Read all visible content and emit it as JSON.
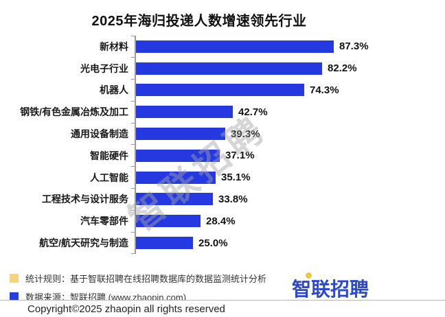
{
  "title": "2025年海归投递人数增速领先行业",
  "chart_data": {
    "type": "bar",
    "orientation": "horizontal",
    "title": "2025年海归投递人数增速领先行业",
    "categories": [
      "新材料",
      "光电子行业",
      "机器人",
      "钢铁/有色金属冶炼及加工",
      "通用设备制造",
      "智能硬件",
      "人工智能",
      "工程技术与设计服务",
      "汽车零部件",
      "航空/航天研究与制造"
    ],
    "values": [
      87.3,
      82.2,
      74.3,
      42.7,
      39.3,
      37.1,
      35.1,
      33.8,
      28.4,
      25.0
    ],
    "value_labels": [
      "87.3%",
      "82.2%",
      "74.3%",
      "42.7%",
      "39.3%",
      "37.1%",
      "35.1%",
      "33.8%",
      "28.4%",
      "25.0%"
    ],
    "xlim": [
      0,
      100
    ],
    "grid": false,
    "legend": "none",
    "bar_color": "#2439e0",
    "axis_color": "#9a9a9a",
    "watermark": "智联招聘"
  },
  "footer": {
    "notes": [
      {
        "bullet_color": "#f3d57a",
        "text": "统计规则：基于智联招聘在线招聘数据库的数据监测统计分析"
      },
      {
        "bullet_color": "#2140dd",
        "text": "数据来源：智联招聘 (www.zhaopin.com)"
      }
    ],
    "logo_text": "智联招聘",
    "logo_color": "#2b49cc",
    "logo_dot_color": "#edc944",
    "copyright": "Copyright©2025 zhaopin all rights reserved"
  }
}
